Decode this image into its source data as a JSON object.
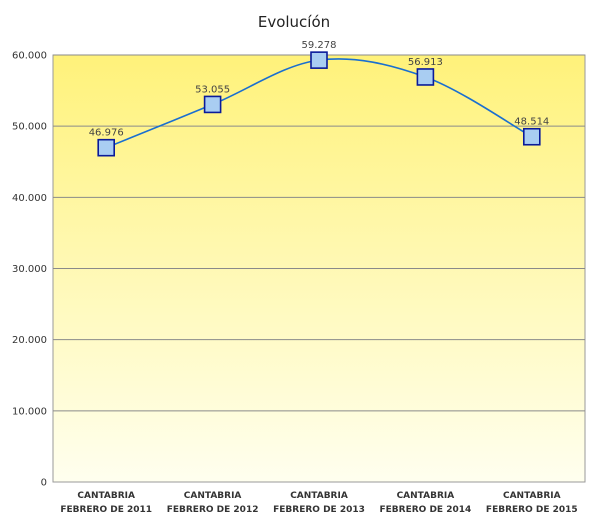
{
  "chart_data": {
    "type": "line",
    "title": "Evolucíón",
    "xlabel": "",
    "ylabel": "",
    "categories": [
      [
        "CANTABRIA",
        "FEBRERO DE 2011"
      ],
      [
        "CANTABRIA",
        "FEBRERO DE 2012"
      ],
      [
        "CANTABRIA",
        "FEBRERO DE 2013"
      ],
      [
        "CANTABRIA",
        "FEBRERO DE 2014"
      ],
      [
        "CANTABRIA",
        "FEBRERO DE 2015"
      ]
    ],
    "series": [
      {
        "values": [
          46976,
          53055,
          59278,
          56913,
          48514
        ],
        "labels": [
          "46.976",
          "53.055",
          "59.278",
          "56.913",
          "48.514"
        ]
      }
    ],
    "ylim": [
      0,
      60000
    ],
    "yticks": [
      0,
      10000,
      20000,
      30000,
      40000,
      50000,
      60000
    ],
    "ytick_labels": [
      "0",
      "10.000",
      "20.000",
      "30.000",
      "40.000",
      "50.000",
      "60.000"
    ],
    "grid": true,
    "smooth": true,
    "colors": {
      "line": "#1a6fd0",
      "marker_fill": "#a9cdf2",
      "marker_stroke": "#0a1a9a",
      "bg_top": "#fff27a",
      "bg_bottom": "#ffffef",
      "grid": "#8a8a8a"
    }
  }
}
